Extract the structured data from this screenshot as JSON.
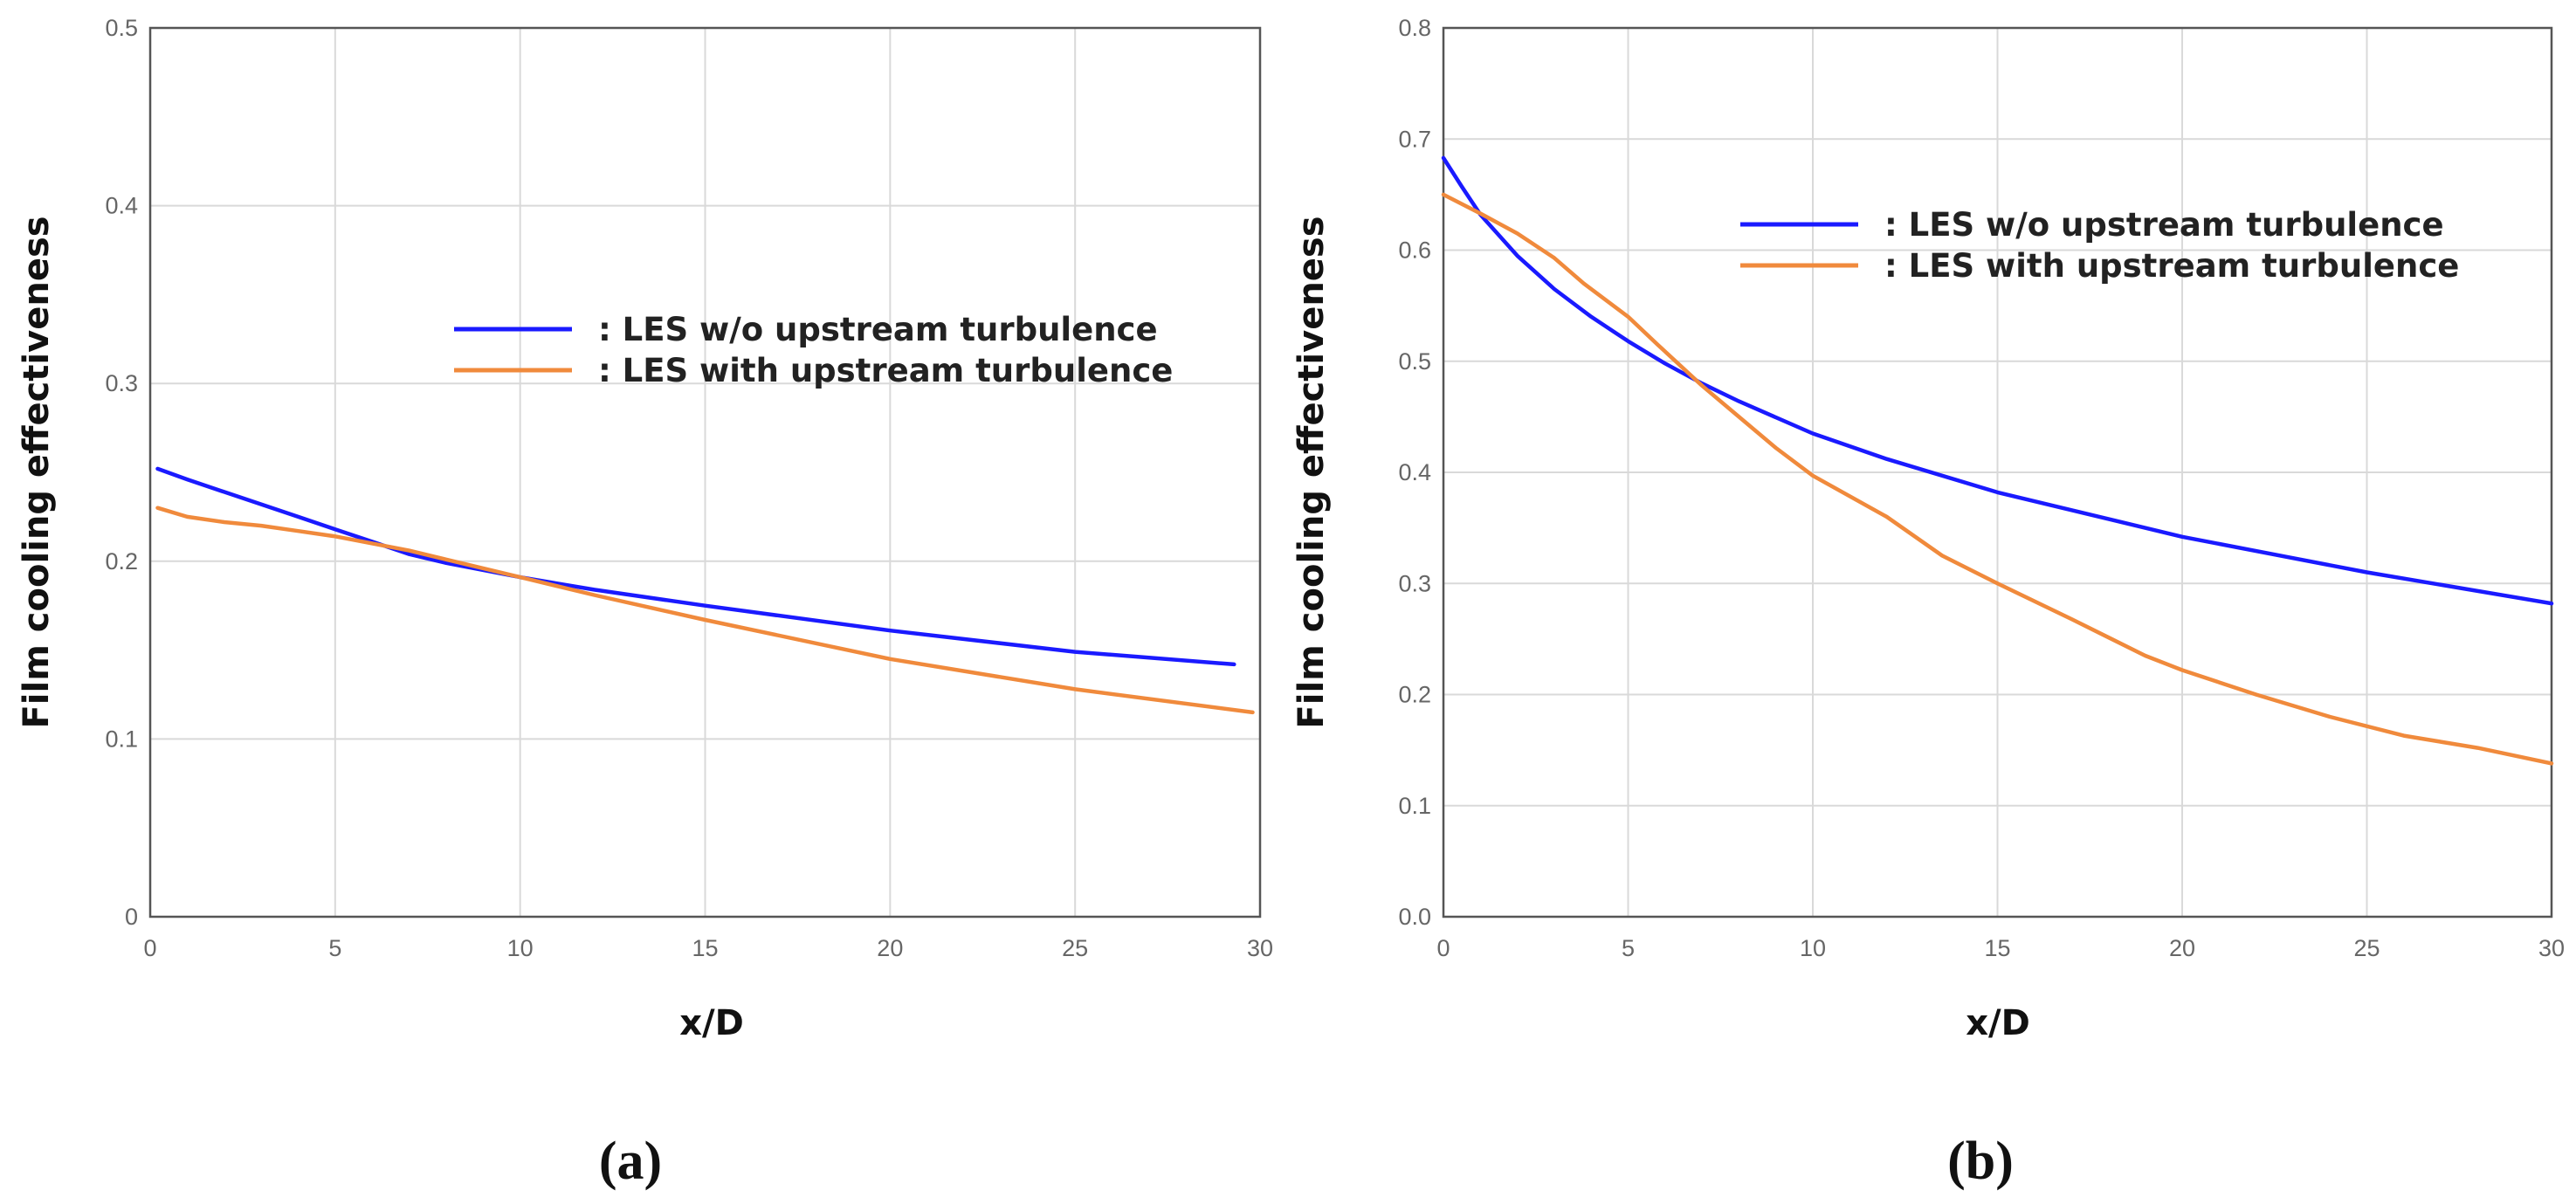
{
  "chart_data": [
    {
      "type": "line",
      "panel_label": "(a)",
      "title": "",
      "xlabel": "x/D",
      "ylabel": "Film cooling effectiveness",
      "xlim": [
        0,
        30
      ],
      "ylim": [
        0,
        0.5
      ],
      "x_ticks": [
        0,
        5,
        10,
        15,
        20,
        25,
        30
      ],
      "y_ticks": [
        0,
        0.1,
        0.2,
        0.3,
        0.4,
        0.5
      ],
      "x_tick_labels": [
        "0",
        "5",
        "10",
        "15",
        "20",
        "25",
        "30"
      ],
      "y_tick_labels": [
        "0",
        "0.1",
        "0.2",
        "0.3",
        "0.4",
        "0.5"
      ],
      "grid": true,
      "legend_position": "center-right",
      "series": [
        {
          "name": "LES w/o upstream turbulence",
          "legend_label": ": LES w/o upstream turbulence",
          "color": "#1a1aff",
          "x": [
            0.2,
            1,
            2,
            3,
            4,
            5,
            6,
            7,
            8,
            10,
            12,
            15,
            20,
            25,
            29.3
          ],
          "y": [
            0.252,
            0.246,
            0.239,
            0.232,
            0.225,
            0.218,
            0.211,
            0.204,
            0.199,
            0.191,
            0.184,
            0.175,
            0.161,
            0.149,
            0.142
          ]
        },
        {
          "name": "LES with upstream turbulence",
          "legend_label": ": LES with upstream turbulence",
          "color": "#f08a3c",
          "x": [
            0.2,
            1,
            2,
            3,
            4,
            5,
            6,
            7,
            8,
            10,
            12,
            15,
            20,
            25,
            29.8
          ],
          "y": [
            0.23,
            0.225,
            0.222,
            0.22,
            0.217,
            0.214,
            0.21,
            0.206,
            0.201,
            0.191,
            0.181,
            0.167,
            0.145,
            0.128,
            0.115
          ]
        }
      ]
    },
    {
      "type": "line",
      "panel_label": "(b)",
      "title": "",
      "xlabel": "x/D",
      "ylabel": "Film cooling effectiveness",
      "xlim": [
        0,
        30
      ],
      "ylim": [
        0,
        0.8
      ],
      "x_ticks": [
        0,
        5,
        10,
        15,
        20,
        25,
        30
      ],
      "y_ticks": [
        0,
        0.1,
        0.2,
        0.3,
        0.4,
        0.5,
        0.6,
        0.7,
        0.8
      ],
      "x_tick_labels": [
        "0",
        "5",
        "10",
        "15",
        "20",
        "25",
        "30"
      ],
      "y_tick_labels": [
        "0.0",
        "0.1",
        "0.2",
        "0.3",
        "0.4",
        "0.5",
        "0.6",
        "0.7",
        "0.8"
      ],
      "grid": true,
      "legend_position": "top-right",
      "series": [
        {
          "name": "LES w/o upstream turbulence",
          "legend_label": ": LES w/o upstream turbulence",
          "color": "#1a1aff",
          "x": [
            0,
            0.5,
            1,
            2,
            3,
            4,
            5,
            6,
            7,
            8,
            10,
            12,
            15,
            20,
            25,
            30
          ],
          "y": [
            0.683,
            0.657,
            0.632,
            0.595,
            0.565,
            0.54,
            0.518,
            0.498,
            0.48,
            0.464,
            0.435,
            0.412,
            0.382,
            0.342,
            0.31,
            0.282
          ]
        },
        {
          "name": "LES with upstream turbulence",
          "legend_label": ": LES with upstream turbulence",
          "color": "#f08a3c",
          "x": [
            0,
            1,
            2,
            3,
            3.8,
            5,
            5.8,
            7,
            8,
            9,
            10,
            12,
            13.5,
            15,
            17,
            19,
            20,
            22,
            24,
            26,
            28,
            30
          ],
          "y": [
            0.65,
            0.633,
            0.615,
            0.593,
            0.57,
            0.54,
            0.515,
            0.478,
            0.45,
            0.422,
            0.397,
            0.36,
            0.325,
            0.3,
            0.268,
            0.235,
            0.222,
            0.2,
            0.18,
            0.163,
            0.152,
            0.138
          ]
        }
      ]
    }
  ]
}
